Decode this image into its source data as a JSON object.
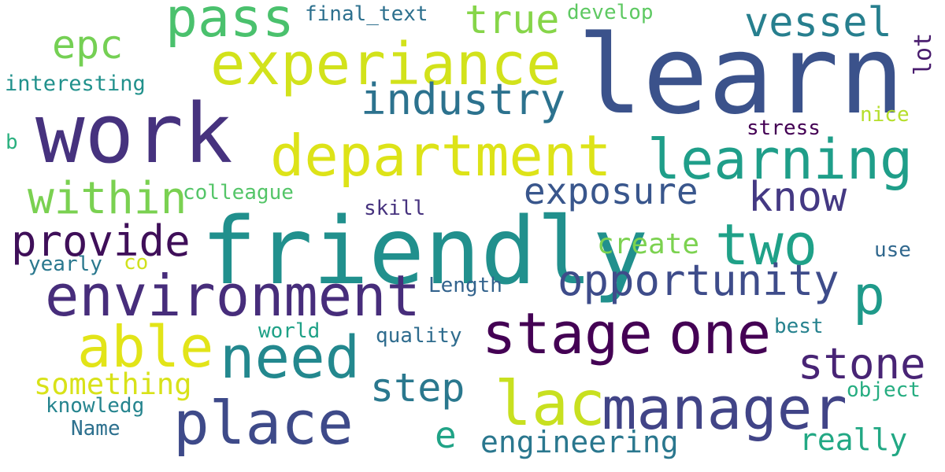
{
  "wordcloud": {
    "words": [
      {
        "text": "learn",
        "color": "#3b528b"
      },
      {
        "text": "friendly",
        "color": "#21908d"
      },
      {
        "text": "work",
        "color": "#46327e"
      },
      {
        "text": "environment",
        "color": "#472d7b"
      },
      {
        "text": "department",
        "color": "#dde318"
      },
      {
        "text": "experiance",
        "color": "#d2e21b"
      },
      {
        "text": "learning",
        "color": "#1f9e89"
      },
      {
        "text": "stage",
        "color": "#440154"
      },
      {
        "text": "one",
        "color": "#440154"
      },
      {
        "text": "place",
        "color": "#3e4a89"
      },
      {
        "text": "manager",
        "color": "#414487"
      },
      {
        "text": "need",
        "color": "#23888e"
      },
      {
        "text": "pass",
        "color": "#4ac16d"
      },
      {
        "text": "able",
        "color": "#e2e418"
      },
      {
        "text": "two",
        "color": "#1fa188"
      },
      {
        "text": "lac",
        "color": "#c8e020"
      },
      {
        "text": "opportunity",
        "color": "#3e4c8a"
      },
      {
        "text": "industry",
        "color": "#2c728e"
      },
      {
        "text": "within",
        "color": "#7ad151"
      },
      {
        "text": "provide",
        "color": "#3f0f59"
      },
      {
        "text": "stone",
        "color": "#482475"
      },
      {
        "text": "exposure",
        "color": "#39568c"
      },
      {
        "text": "know",
        "color": "#443983"
      },
      {
        "text": "vessel",
        "color": "#277f8e"
      },
      {
        "text": "epc",
        "color": "#75d054"
      },
      {
        "text": "true",
        "color": "#86d549"
      },
      {
        "text": "step",
        "color": "#2a788e"
      },
      {
        "text": "p",
        "color": "#1f9a8a"
      },
      {
        "text": "e",
        "color": "#20a386"
      },
      {
        "text": "engineering",
        "color": "#2a778e"
      },
      {
        "text": "something",
        "color": "#d8e219"
      },
      {
        "text": "create",
        "color": "#7cd250"
      },
      {
        "text": "really",
        "color": "#22a884"
      },
      {
        "text": "lot",
        "color": "#481b6d"
      },
      {
        "text": "interesting",
        "color": "#21918c"
      },
      {
        "text": "colleague",
        "color": "#54c568"
      },
      {
        "text": "final_text",
        "color": "#2d708e"
      },
      {
        "text": "develop",
        "color": "#5ec962"
      },
      {
        "text": "stress",
        "color": "#440154"
      },
      {
        "text": "nice",
        "color": "#b5de2b"
      },
      {
        "text": "skill",
        "color": "#46327e"
      },
      {
        "text": "use",
        "color": "#31688e"
      },
      {
        "text": "yearly",
        "color": "#2a788e"
      },
      {
        "text": "co",
        "color": "#d0e11c"
      },
      {
        "text": "Length",
        "color": "#33638d"
      },
      {
        "text": "world",
        "color": "#1fa187"
      },
      {
        "text": "best",
        "color": "#26828e"
      },
      {
        "text": "quality",
        "color": "#2f6c8e"
      },
      {
        "text": "object",
        "color": "#26ad81"
      },
      {
        "text": "knowledg",
        "color": "#25848e"
      },
      {
        "text": "Name",
        "color": "#2d708e"
      },
      {
        "text": "b",
        "color": "#2ab07f"
      }
    ]
  }
}
